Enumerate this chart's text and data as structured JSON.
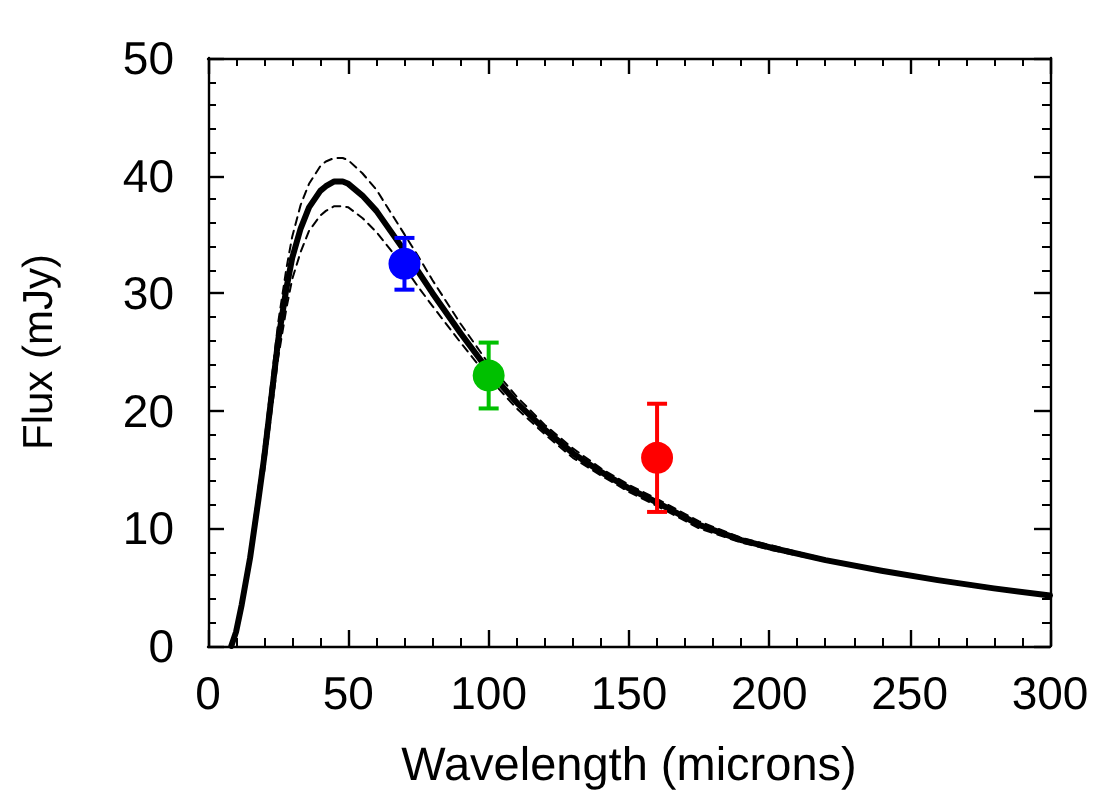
{
  "chart_data": {
    "type": "line",
    "xlabel": "Wavelength (microns)",
    "ylabel": "Flux (mJy)",
    "xlim": [
      0,
      300
    ],
    "ylim": [
      0,
      50
    ],
    "xticks": [
      0,
      50,
      100,
      150,
      200,
      250,
      300
    ],
    "yticks": [
      0,
      10,
      20,
      30,
      40,
      50
    ],
    "series": [
      {
        "color": "#000000",
        "line_style": "solid",
        "marker": "none",
        "x": [
          8.3,
          10,
          12,
          15,
          18,
          20,
          22,
          25,
          28,
          30,
          33,
          36,
          40,
          42,
          45,
          48,
          50,
          55,
          60,
          65,
          70,
          75,
          80,
          90,
          100,
          110,
          120,
          130,
          140,
          150,
          160,
          175,
          190,
          200,
          220,
          240,
          260,
          280,
          300
        ],
        "values": [
          0,
          1.2,
          3.5,
          7.5,
          12.5,
          16,
          20,
          26,
          30.5,
          33,
          35.5,
          37.3,
          38.7,
          39.1,
          39.5,
          39.5,
          39.3,
          38.3,
          37,
          35.3,
          33.6,
          31.8,
          30,
          26.6,
          23.4,
          20.7,
          18.4,
          16.4,
          14.8,
          13.4,
          12.2,
          10.3,
          9,
          8.4,
          7.3,
          6.4,
          5.6,
          4.9,
          4.3
        ]
      },
      {
        "color": "#000000",
        "line_style": "dashed",
        "marker": "none",
        "x": [
          12,
          15,
          18,
          20,
          22,
          25,
          28,
          30,
          33,
          36,
          40,
          42,
          45,
          48,
          50,
          55,
          60,
          65,
          70,
          75,
          80,
          90,
          100,
          110,
          120,
          130,
          140,
          150,
          160,
          175,
          190,
          200,
          220,
          240,
          260,
          280,
          300
        ],
        "values": [
          4,
          8.2,
          13.5,
          17.2,
          21.3,
          27.5,
          32.2,
          34.8,
          37.5,
          39.3,
          40.8,
          41.2,
          41.5,
          41.5,
          41.3,
          40.2,
          38.8,
          36.9,
          35,
          33.1,
          31.1,
          27.4,
          24,
          21.2,
          18.8,
          16.8,
          15.1,
          13.7,
          12.5,
          10.6,
          9.2,
          8.6,
          7.4,
          6.5,
          5.7,
          5,
          4.4
        ]
      },
      {
        "color": "#000000",
        "line_style": "dashed",
        "marker": "none",
        "x": [
          20,
          22,
          25,
          28,
          30,
          33,
          36,
          40,
          42,
          45,
          48,
          50,
          55,
          60,
          65,
          70,
          75,
          80,
          90,
          100,
          110,
          120,
          130,
          140,
          150,
          160,
          175,
          190,
          200,
          220,
          240,
          260,
          280
        ],
        "values": [
          14.8,
          18.7,
          24.5,
          28.8,
          31.2,
          33.5,
          35.3,
          36.6,
          37,
          37.4,
          37.4,
          37.3,
          36.4,
          35.2,
          33.7,
          32.2,
          30.5,
          28.9,
          25.8,
          22.8,
          20.2,
          18,
          16,
          14.5,
          13.1,
          11.9,
          10,
          8.8,
          8.2,
          7.2,
          6.3,
          5.5,
          4.8
        ]
      },
      {
        "type": "scatter",
        "marker": "circle",
        "x": [
          70,
          100,
          160
        ],
        "values": [
          32.5,
          23,
          16
        ],
        "errors": [
          2.2,
          2.8,
          4.6
        ],
        "colors": [
          "#0000ff",
          "#00c000",
          "#ff0000"
        ]
      }
    ]
  }
}
